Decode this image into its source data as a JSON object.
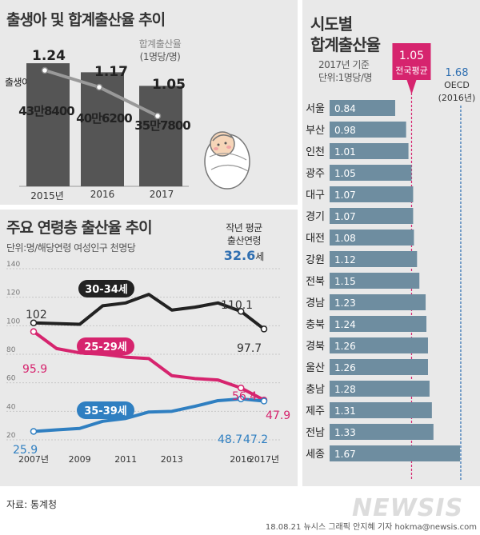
{
  "births": {
    "title": "출생아 및 합계출산율 추이",
    "rate_label_1": "합계출산율",
    "rate_label_2": "(1명당/명)",
    "births_label": "출생아(명)",
    "categories": [
      "2015년",
      "2016",
      "2017"
    ],
    "births_labels": [
      "43만8400",
      "40만6200",
      "35만7800"
    ],
    "rate_labels": [
      "1.24",
      "1.17",
      "1.05"
    ]
  },
  "age": {
    "title": "주요 연령층 출산율 추이",
    "unit": "단위:명/해당연령 여성인구 천명당",
    "avg_label_1": "작년 평균",
    "avg_label_2": "출산연령",
    "avg_value": "32.6",
    "avg_unit": "세",
    "y_ticks": [
      "140",
      "120",
      "100",
      "80",
      "60",
      "40",
      "20"
    ],
    "x_ticks": [
      "2007년",
      "2009",
      "2011",
      "2013",
      "2016",
      "2017년"
    ],
    "series_labels": [
      "30-34세",
      "25-29세",
      "35-39세"
    ],
    "point_labels": [
      "102",
      "110.1",
      "97.7",
      "95.9",
      "56.4",
      "47.9",
      "25.9",
      "48.7",
      "47.2"
    ]
  },
  "regions": {
    "title_1": "시도별",
    "title_2": "합계출산율",
    "basis": "2017년 기준",
    "unit": "단위:1명당/명",
    "national_value": "1.05",
    "national_label": "전국평균",
    "oecd_value": "1.68",
    "oecd_label": "OECD",
    "oecd_year": "(2016년)",
    "names": [
      "서울",
      "부산",
      "인천",
      "광주",
      "대구",
      "경기",
      "대전",
      "강원",
      "전북",
      "경남",
      "충북",
      "경북",
      "울산",
      "충남",
      "제주",
      "전남",
      "세종"
    ],
    "value_labels": [
      "0.84",
      "0.98",
      "1.01",
      "1.05",
      "1.07",
      "1.07",
      "1.08",
      "1.12",
      "1.15",
      "1.23",
      "1.24",
      "1.26",
      "1.26",
      "1.28",
      "1.31",
      "1.33",
      "1.67"
    ]
  },
  "footer": {
    "source": "자료: 통계청",
    "credit": "18.08.21  뉴시스 그래픽  안지혜 기자  hokma@newsis.com",
    "watermark": "NEWSIS"
  },
  "colors": {
    "bar": "#6e8da0",
    "births_bar": "#555555",
    "s30_34": "#222222",
    "s25_29": "#d6246e",
    "s35_39": "#2f7fc1",
    "national_line": "#d6246e",
    "oecd_line": "#2f6fb1"
  },
  "chart_data": [
    {
      "type": "bar",
      "title": "출생아 및 합계출산율 추이",
      "categories": [
        "2015년",
        "2016",
        "2017"
      ],
      "series": [
        {
          "name": "출생아(명)",
          "type": "bar",
          "values": [
            438400,
            406200,
            357800
          ]
        },
        {
          "name": "합계출산율",
          "type": "line",
          "values": [
            1.24,
            1.17,
            1.05
          ]
        }
      ]
    },
    {
      "type": "line",
      "title": "주요 연령층 출산율 추이",
      "ylim": [
        20,
        140
      ],
      "x_range": [
        2007,
        2017
      ],
      "series": [
        {
          "name": "30-34세",
          "x": [
            2007,
            2008,
            2009,
            2010,
            2011,
            2012,
            2013,
            2014,
            2015,
            2016,
            2017
          ],
          "values": [
            102.0,
            101.5,
            101.0,
            114.0,
            116.0,
            122.0,
            111.0,
            113.0,
            116.0,
            110.1,
            97.7
          ]
        },
        {
          "name": "25-29세",
          "x": [
            2007,
            2008,
            2009,
            2010,
            2011,
            2012,
            2013,
            2014,
            2015,
            2016,
            2017
          ],
          "values": [
            95.9,
            84.0,
            81.0,
            80.0,
            78.0,
            77.0,
            65.0,
            63.0,
            62.0,
            56.4,
            47.9
          ]
        },
        {
          "name": "35-39세",
          "x": [
            2007,
            2008,
            2009,
            2010,
            2011,
            2012,
            2013,
            2014,
            2015,
            2016,
            2017
          ],
          "values": [
            25.9,
            27.0,
            28.0,
            33.0,
            35.0,
            39.5,
            40.0,
            43.5,
            47.5,
            48.7,
            47.2
          ]
        }
      ]
    },
    {
      "type": "bar",
      "title": "시도별 합계출산율",
      "categories": [
        "서울",
        "부산",
        "인천",
        "광주",
        "대구",
        "경기",
        "대전",
        "강원",
        "전북",
        "경남",
        "충북",
        "경북",
        "울산",
        "충남",
        "제주",
        "전남",
        "세종"
      ],
      "values": [
        0.84,
        0.98,
        1.01,
        1.05,
        1.07,
        1.07,
        1.08,
        1.12,
        1.15,
        1.23,
        1.24,
        1.26,
        1.26,
        1.28,
        1.31,
        1.33,
        1.67
      ],
      "reference_lines": [
        {
          "label": "전국평균",
          "value": 1.05
        },
        {
          "label": "OECD",
          "value": 1.68
        }
      ]
    }
  ]
}
